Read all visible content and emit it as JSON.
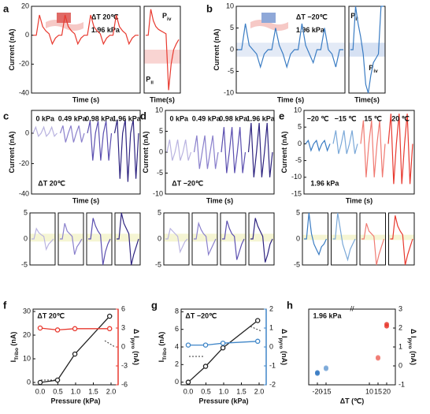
{
  "figure": {
    "panel_labels": [
      "a",
      "b",
      "c",
      "d",
      "e",
      "f",
      "g",
      "h"
    ]
  },
  "chart_data": [
    {
      "type": "trace",
      "y_label": [
        "Current (nA)"
      ],
      "x_label": "Time (s)",
      "ylim": [
        -40,
        20
      ],
      "yticks": [
        -40,
        -20,
        0,
        20
      ],
      "annotations": [
        [
          "ΔT 20℃"
        ],
        [
          "1.96 kPa"
        ]
      ],
      "series": [
        {
          "color": "#e8392f",
          "values": [
            0,
            0,
            14,
            6,
            3,
            1,
            -6,
            -2,
            0,
            0,
            14,
            6,
            3,
            1,
            -6,
            -2,
            0,
            0,
            14,
            6,
            3,
            1,
            -6,
            -2,
            0,
            0,
            14,
            6,
            3,
            1,
            -6,
            -2,
            0,
            0
          ]
        }
      ]
    },
    {
      "type": "trace",
      "x_label": "Time(s)",
      "ylim": [
        -40,
        20
      ],
      "annotations": [
        [
          "P",
          "iv"
        ],
        [
          "P",
          "ii"
        ]
      ],
      "series": [
        {
          "color": "#e8392f",
          "values": [
            0,
            0,
            18,
            10,
            6,
            4,
            3,
            2,
            1,
            -38,
            -20,
            -10,
            -6,
            -3
          ]
        }
      ]
    },
    {
      "type": "trace",
      "y_label": [
        "Current (nA)"
      ],
      "x_label": "Time (s)",
      "ylim": [
        -10,
        10
      ],
      "yticks": [
        -10,
        -5,
        0,
        5,
        10
      ],
      "annotations": [
        [
          "ΔT −20℃"
        ],
        [
          "1.96 kPa"
        ]
      ],
      "series": [
        {
          "color": "#3a7cc3",
          "values": [
            0,
            0,
            6,
            1,
            0,
            -1,
            -4,
            -1,
            0,
            0,
            5,
            1,
            -1,
            -4,
            -1,
            0,
            0,
            6,
            1,
            -1,
            -3,
            0,
            0,
            5,
            0,
            -1,
            -4,
            0,
            0
          ]
        }
      ]
    },
    {
      "type": "trace",
      "x_label": "Time(s)",
      "ylim": [
        -10,
        10
      ],
      "annotations": [
        [
          "P",
          "ii"
        ],
        [
          "P",
          "iv"
        ]
      ],
      "series": [
        {
          "color": "#3a7cc3",
          "values": [
            0,
            0,
            10,
            6,
            3,
            -1,
            -8,
            -10,
            -6,
            -3,
            -2,
            -1,
            10,
            10
          ]
        }
      ]
    },
    {
      "type": "trace",
      "y_label": [
        "Current (nA)"
      ],
      "x_label": "Time (s)",
      "ylim": [
        -40,
        15
      ],
      "yticks": [
        -40,
        -20,
        0
      ],
      "annotations": [
        [
          "ΔT 20℃"
        ]
      ],
      "series": [
        {
          "name": "0 kPa",
          "color": "#b9b3e0",
          "values": [
            0,
            4,
            -2,
            0,
            4,
            -2,
            0,
            4,
            -2,
            0
          ]
        },
        {
          "name": "0.49 kPa",
          "color": "#8a80cc",
          "values": [
            0,
            5,
            -6,
            0,
            5,
            -6,
            0,
            5,
            -6,
            0
          ]
        },
        {
          "name": "0.98 kPa",
          "color": "#5b4fb0",
          "values": [
            0,
            8,
            -18,
            0,
            8,
            -18,
            0,
            8,
            -18,
            0
          ]
        },
        {
          "name": "1.96 kPa",
          "color": "#2e2480",
          "values": [
            0,
            9,
            -30,
            0,
            9,
            -32,
            0,
            9,
            -30,
            0
          ]
        }
      ]
    },
    {
      "type": "trace",
      "panels": true,
      "ylim": [
        -5,
        5
      ],
      "yticks": [
        -5,
        0,
        5
      ],
      "series": [
        {
          "color": "#b9b3e0",
          "values": [
            0,
            0,
            2,
            1.2,
            0.8,
            0.5,
            -2,
            -1,
            -0.5,
            0
          ]
        },
        {
          "color": "#8a80cc",
          "values": [
            0,
            0,
            3,
            1.5,
            1,
            0.5,
            -3,
            -1.5,
            -0.8,
            0
          ]
        },
        {
          "color": "#5b4fb0",
          "values": [
            0,
            0,
            4,
            2.5,
            1.5,
            0.8,
            -5,
            -2.5,
            -1,
            0
          ]
        },
        {
          "color": "#2e2480",
          "values": [
            0,
            0,
            5,
            3,
            2,
            1,
            -5,
            -3,
            -1.5,
            0
          ]
        }
      ]
    },
    {
      "type": "trace",
      "y_label": [
        "Current (nA)"
      ],
      "x_label": "Time (s)",
      "ylim": [
        -10,
        10
      ],
      "yticks": [
        -10,
        -5,
        0,
        5,
        10
      ],
      "annotations": [
        [
          "ΔT −20℃"
        ]
      ],
      "series": [
        {
          "name": "0 kPa",
          "color": "#b9b3e0",
          "values": [
            0,
            3,
            -2,
            0,
            3,
            -2,
            0,
            3,
            -2,
            0
          ]
        },
        {
          "name": "0.49 kPa",
          "color": "#8a80cc",
          "values": [
            0,
            4,
            -4,
            0,
            4,
            -4,
            0,
            4,
            -4,
            0
          ]
        },
        {
          "name": "0.98 kPa",
          "color": "#5b4fb0",
          "values": [
            0,
            6,
            -5,
            0,
            6,
            -5,
            0,
            6,
            -5,
            0
          ]
        },
        {
          "name": "1.96 kPa",
          "color": "#2e2480",
          "values": [
            0,
            7,
            -6,
            0,
            7,
            -6,
            0,
            7,
            -6,
            0
          ]
        }
      ]
    },
    {
      "type": "trace",
      "panels": true,
      "ylim": [
        -5,
        5
      ],
      "yticks": [
        -5,
        0,
        5
      ],
      "series": [
        {
          "color": "#b9b3e0",
          "values": [
            0,
            0,
            2,
            1.5,
            1,
            0.5,
            -2.5,
            -1.5,
            -0.5,
            0
          ]
        },
        {
          "color": "#8a80cc",
          "values": [
            0,
            0,
            3,
            1.8,
            1,
            0.5,
            -3,
            -2,
            -1,
            0
          ]
        },
        {
          "color": "#5b4fb0",
          "values": [
            0,
            0,
            3.5,
            2,
            1,
            0.5,
            -4,
            -2.5,
            -1,
            0
          ]
        },
        {
          "color": "#2e2480",
          "values": [
            0,
            0,
            4,
            2.5,
            1.5,
            0.5,
            -4.5,
            -3,
            -1,
            0
          ]
        }
      ]
    },
    {
      "type": "trace",
      "y_label": [
        "Current (nA)"
      ],
      "x_label": "Time (s)",
      "ylim": [
        -15,
        10
      ],
      "yticks": [
        -15,
        -10,
        -5,
        0,
        5,
        10
      ],
      "annotations": [
        [
          "1.96 kPa"
        ]
      ],
      "series": [
        {
          "name": "−20 ℃",
          "color": "#3a7cc3",
          "values": [
            0,
            1,
            -2,
            0,
            1,
            -2,
            0,
            1,
            -2,
            0
          ]
        },
        {
          "name": "−15 ℃",
          "color": "#7aa8d8",
          "values": [
            0,
            4,
            -3,
            0,
            4,
            -3,
            0,
            4,
            -3,
            0
          ]
        },
        {
          "name": "15 ℃",
          "color": "#f07a72",
          "values": [
            0,
            7,
            -10,
            0,
            7,
            -10,
            0,
            7,
            -10,
            0
          ]
        },
        {
          "name": "20 ℃",
          "color": "#e8392f",
          "values": [
            0,
            9,
            -12,
            0,
            9,
            -12,
            0,
            9,
            -12,
            0
          ]
        }
      ]
    },
    {
      "type": "trace",
      "panels": true,
      "ylim": [
        -5,
        5
      ],
      "yticks": [
        -5,
        0,
        5
      ],
      "series": [
        {
          "color": "#3a7cc3",
          "values": [
            0,
            0,
            5,
            1,
            -1,
            -2,
            -3,
            -1.5,
            -1,
            0
          ]
        },
        {
          "color": "#7aa8d8",
          "values": [
            0,
            0,
            5,
            2,
            -1,
            -2.5,
            -4,
            -2,
            -1,
            0
          ]
        },
        {
          "color": "#f07a72",
          "values": [
            0,
            0,
            3,
            1.5,
            1,
            0.5,
            -5,
            -3,
            -1.5,
            0
          ]
        },
        {
          "color": "#e8392f",
          "values": [
            0,
            0,
            4.5,
            2.5,
            1.5,
            0.8,
            -5,
            -3,
            -1.5,
            0
          ]
        }
      ]
    },
    {
      "type": "line",
      "x_label": "Pressure (kPa)",
      "y_label": [
        "I",
        "Tribo",
        " (nA)"
      ],
      "y2_label": [
        "Δ I",
        "pyro",
        " (nA)"
      ],
      "annotations": [
        [
          "ΔT 20℃"
        ]
      ],
      "xlim": [
        -0.2,
        2.2
      ],
      "xticks": [
        {
          "value": 0,
          "label": "0.0"
        },
        0.5,
        {
          "value": 1,
          "label": "1.0"
        },
        1.5,
        {
          "value": 2,
          "label": "2.0"
        }
      ],
      "ylim": [
        -1,
        31
      ],
      "yticks": [
        0,
        10,
        20,
        30
      ],
      "y2lim": [
        -6,
        6
      ],
      "y2ticks": [
        -6,
        -3,
        0,
        3,
        6
      ],
      "series": [
        {
          "color": "#222222",
          "x": [
            0,
            0.49,
            0.98,
            1.96
          ],
          "values": [
            0,
            1,
            12,
            28
          ]
        },
        {
          "color": "#e8392f",
          "axis": "y2",
          "x": [
            0,
            0.49,
            0.98,
            1.96
          ],
          "values": [
            3,
            2.7,
            2.9,
            2.9
          ]
        }
      ]
    },
    {
      "type": "line",
      "x_label": "Pressure (kPa)",
      "y_label": [
        "I",
        "Tribo",
        " (nA)"
      ],
      "y2_label": [
        "Δ I",
        "pyro",
        " (nA)"
      ],
      "annotations": [
        [
          "ΔT −20℃"
        ]
      ],
      "xlim": [
        -0.2,
        2.2
      ],
      "xticks": [
        {
          "value": 0,
          "label": "0.0"
        },
        0.5,
        {
          "value": 1,
          "label": "1.0"
        },
        1.5,
        {
          "value": 2,
          "label": "2.0"
        }
      ],
      "ylim": [
        -0.3,
        8.3
      ],
      "yticks": [
        0,
        2,
        4,
        6,
        8
      ],
      "y2lim": [
        -2,
        2
      ],
      "y2ticks": [
        -2,
        -1,
        0,
        1,
        2
      ],
      "series": [
        {
          "color": "#222222",
          "x": [
            0,
            0.49,
            0.98,
            1.96
          ],
          "values": [
            0,
            1.8,
            3.9,
            7
          ]
        },
        {
          "color": "#3f86c8",
          "axis": "y2",
          "x": [
            0,
            0.49,
            0.98,
            1.96
          ],
          "values": [
            0.1,
            0.1,
            0.2,
            0.3
          ]
        }
      ]
    },
    {
      "type": "scatter",
      "x_label": "ΔT (℃)",
      "y2_label": [
        "Δ I",
        "pyro",
        " (nA)"
      ],
      "annotations": [
        [
          "1.96 kPa"
        ]
      ],
      "y_side": "right",
      "xlim": [
        -25,
        25
      ],
      "xticks": [
        -20,
        -15,
        10,
        15,
        20
      ],
      "ylim": [
        -1,
        3
      ],
      "yticks": [
        -1,
        0,
        1,
        2,
        3
      ],
      "x": [
        -20,
        -20,
        -15,
        -15,
        15,
        15,
        20,
        20
      ],
      "values": [
        -0.35,
        -0.4,
        -0.1,
        -0.15,
        0.4,
        0.45,
        2.2,
        2.1
      ],
      "colors": [
        "#3a7cc3",
        "#3a7cc3",
        "#7aa8d8",
        "#7aa8d8",
        "#f07a72",
        "#f07a72",
        "#e8392f",
        "#e8392f"
      ]
    }
  ]
}
